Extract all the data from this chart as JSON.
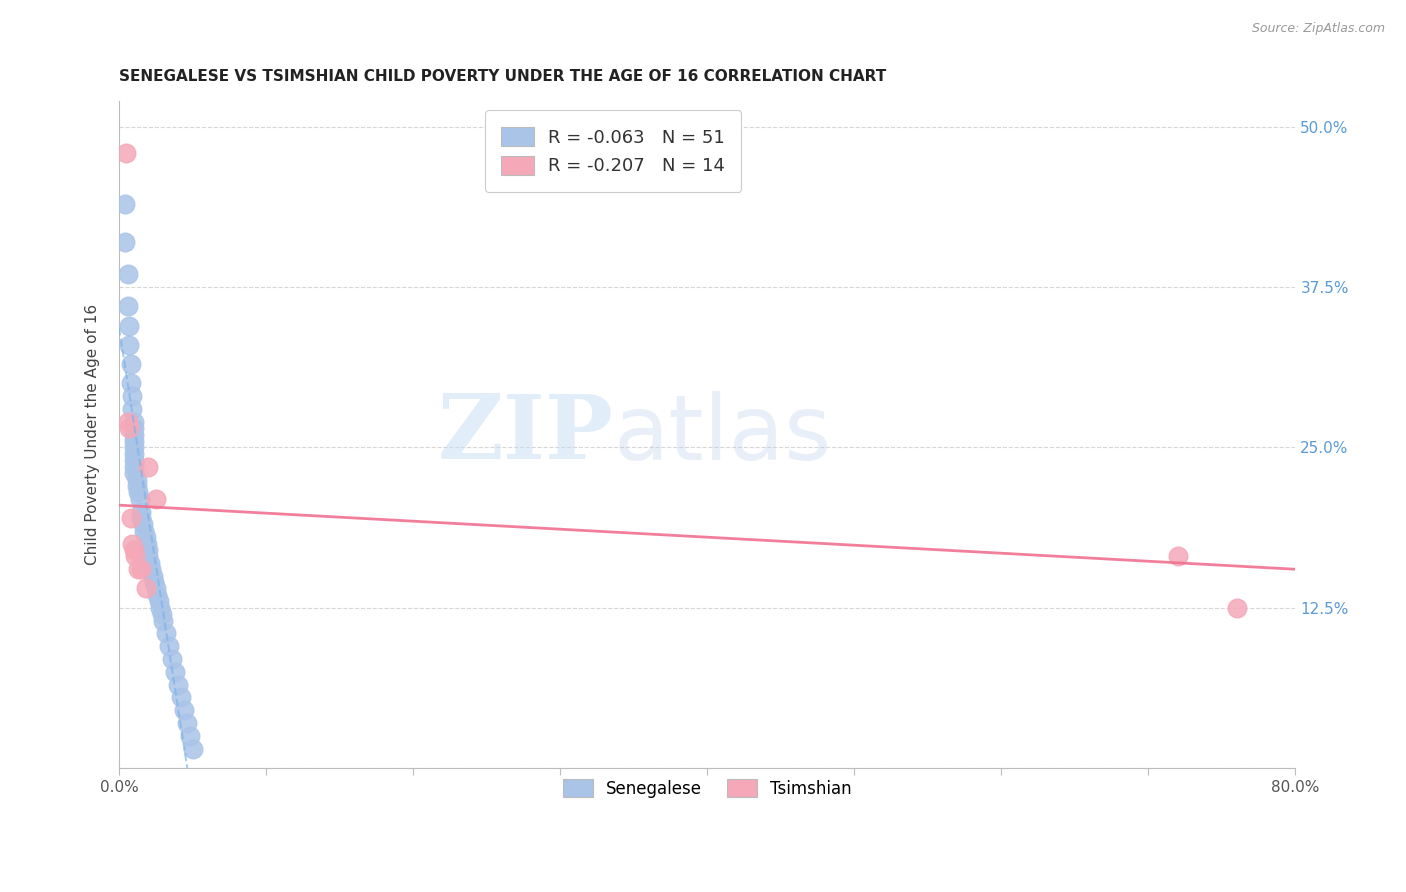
{
  "title": "SENEGALESE VS TSIMSHIAN CHILD POVERTY UNDER THE AGE OF 16 CORRELATION CHART",
  "source": "Source: ZipAtlas.com",
  "ylabel": "Child Poverty Under the Age of 16",
  "xlim": [
    0.0,
    0.8
  ],
  "ylim": [
    0.0,
    0.52
  ],
  "ytick_positions": [
    0.0,
    0.125,
    0.25,
    0.375,
    0.5
  ],
  "ytick_labels_right": [
    "",
    "12.5%",
    "25.0%",
    "37.5%",
    "50.0%"
  ],
  "xtick_positions": [
    0.0,
    0.1,
    0.2,
    0.3,
    0.4,
    0.5,
    0.6,
    0.7,
    0.8
  ],
  "xtick_labels": [
    "0.0%",
    "",
    "",
    "",
    "",
    "",
    "",
    "",
    "80.0%"
  ],
  "background_color": "#ffffff",
  "grid_color": "#cccccc",
  "senegalese_color": "#aac4e8",
  "tsimshian_color": "#f4a8b8",
  "senegalese_line_color": "#7ab0e8",
  "tsimshian_line_color": "#f07090",
  "R1": "-0.063",
  "N1": "51",
  "R2": "-0.207",
  "N2": "14",
  "legend_label_1": "Senegalese",
  "legend_label_2": "Tsimshian",
  "senegalese_x": [
    0.004,
    0.004,
    0.006,
    0.006,
    0.007,
    0.007,
    0.008,
    0.008,
    0.009,
    0.009,
    0.01,
    0.01,
    0.01,
    0.01,
    0.01,
    0.01,
    0.01,
    0.01,
    0.01,
    0.012,
    0.012,
    0.013,
    0.014,
    0.015,
    0.015,
    0.016,
    0.017,
    0.018,
    0.019,
    0.02,
    0.02,
    0.021,
    0.022,
    0.023,
    0.024,
    0.025,
    0.026,
    0.027,
    0.028,
    0.029,
    0.03,
    0.032,
    0.034,
    0.036,
    0.038,
    0.04,
    0.042,
    0.044,
    0.046,
    0.048,
    0.05
  ],
  "senegalese_y": [
    0.44,
    0.41,
    0.385,
    0.36,
    0.345,
    0.33,
    0.315,
    0.3,
    0.29,
    0.28,
    0.27,
    0.265,
    0.26,
    0.255,
    0.25,
    0.245,
    0.24,
    0.235,
    0.23,
    0.225,
    0.22,
    0.215,
    0.21,
    0.2,
    0.195,
    0.19,
    0.185,
    0.18,
    0.175,
    0.17,
    0.165,
    0.16,
    0.155,
    0.15,
    0.145,
    0.14,
    0.135,
    0.13,
    0.125,
    0.12,
    0.115,
    0.105,
    0.095,
    0.085,
    0.075,
    0.065,
    0.055,
    0.045,
    0.035,
    0.025,
    0.015
  ],
  "tsimshian_x": [
    0.005,
    0.006,
    0.007,
    0.008,
    0.009,
    0.01,
    0.011,
    0.013,
    0.015,
    0.018,
    0.02,
    0.025,
    0.72,
    0.76
  ],
  "tsimshian_y": [
    0.48,
    0.27,
    0.265,
    0.195,
    0.175,
    0.17,
    0.165,
    0.155,
    0.155,
    0.14,
    0.235,
    0.21,
    0.165,
    0.125
  ],
  "tsimshian_trendline_x0": 0.0,
  "tsimshian_trendline_y0": 0.205,
  "tsimshian_trendline_x1": 0.8,
  "tsimshian_trendline_y1": 0.155
}
